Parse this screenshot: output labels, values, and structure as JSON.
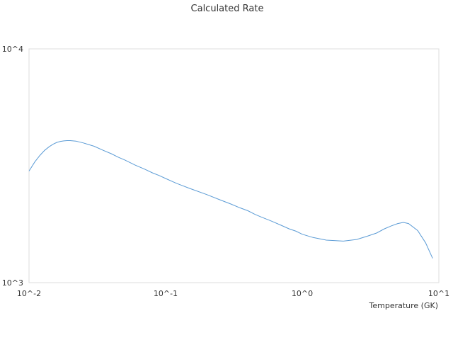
{
  "chart_data": {
    "type": "line",
    "title": "Calculated Rate",
    "xlabel": "Temperature (GK)",
    "ylabel": "",
    "x_scale": "log",
    "y_scale": "log",
    "xlim": [
      0.01,
      10
    ],
    "ylim": [
      1000,
      10000
    ],
    "x_ticks": [
      {
        "value": 0.01,
        "label": "10^-2"
      },
      {
        "value": 0.1,
        "label": "10^-1"
      },
      {
        "value": 1,
        "label": "10^0"
      },
      {
        "value": 10,
        "label": "10^1"
      }
    ],
    "y_ticks": [
      {
        "value": 1000,
        "label": "10^3"
      },
      {
        "value": 10000,
        "label": "10^4"
      }
    ],
    "grid": false,
    "legend": "none",
    "colors": {
      "series": "#5b9bd5",
      "frame": "#dddddd"
    },
    "series": [
      {
        "x": [
          0.01,
          0.011,
          0.012,
          0.013,
          0.014,
          0.015,
          0.016,
          0.017,
          0.018,
          0.019,
          0.02,
          0.022,
          0.025,
          0.03,
          0.035,
          0.04,
          0.045,
          0.05,
          0.06,
          0.07,
          0.08,
          0.09,
          0.1,
          0.12,
          0.15,
          0.2,
          0.25,
          0.3,
          0.35,
          0.4,
          0.45,
          0.5,
          0.6,
          0.7,
          0.8,
          0.9,
          1.0,
          1.2,
          1.5,
          2.0,
          2.5,
          3.0,
          3.5,
          4.0,
          4.5,
          5.0,
          5.5,
          6.0,
          7.0,
          8.0,
          9.0
        ],
        "y": [
          3000,
          3280,
          3500,
          3680,
          3810,
          3910,
          3980,
          4020,
          4040,
          4050,
          4050,
          4030,
          3960,
          3830,
          3680,
          3560,
          3440,
          3350,
          3180,
          3060,
          2950,
          2870,
          2790,
          2660,
          2530,
          2380,
          2260,
          2170,
          2090,
          2030,
          1960,
          1910,
          1830,
          1760,
          1700,
          1660,
          1610,
          1560,
          1520,
          1505,
          1530,
          1580,
          1630,
          1700,
          1750,
          1790,
          1810,
          1790,
          1670,
          1480,
          1270
        ]
      }
    ]
  }
}
